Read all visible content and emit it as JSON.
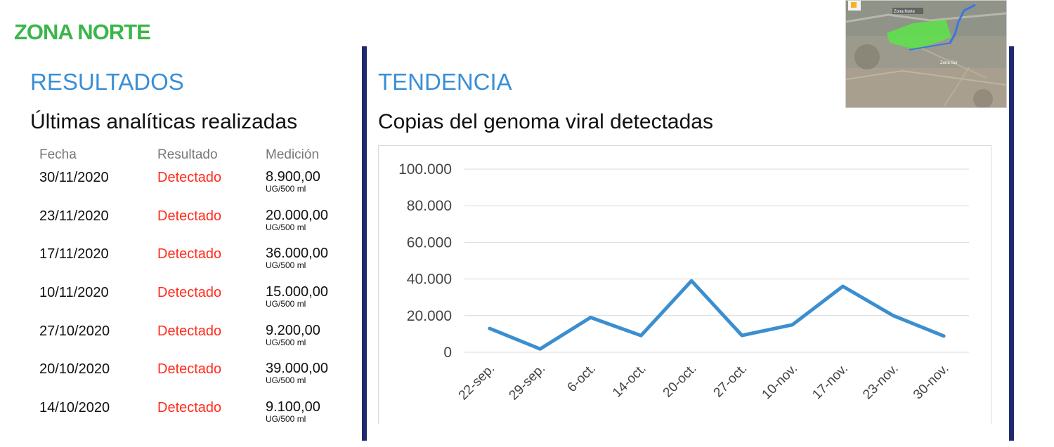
{
  "zone_title": "ZONA NORTE",
  "results": {
    "heading": "RESULTADOS",
    "subtitle": "Últimas analíticas realizadas",
    "columns": [
      "Fecha",
      "Resultado",
      "Medición"
    ],
    "rows": [
      {
        "date": "30/11/2020",
        "result": "Detectado",
        "value": "8.900,00",
        "unit": "UG/500 ml"
      },
      {
        "date": "23/11/2020",
        "result": "Detectado",
        "value": "20.000,00",
        "unit": "UG/500 ml"
      },
      {
        "date": "17/11/2020",
        "result": "Detectado",
        "value": "36.000,00",
        "unit": "UG/500 ml"
      },
      {
        "date": "10/11/2020",
        "result": "Detectado",
        "value": "15.000,00",
        "unit": "UG/500 ml"
      },
      {
        "date": "27/10/2020",
        "result": "Detectado",
        "value": "9.200,00",
        "unit": "UG/500 ml"
      },
      {
        "date": "20/10/2020",
        "result": "Detectado",
        "value": "39.000,00",
        "unit": "UG/500 ml"
      },
      {
        "date": "14/10/2020",
        "result": "Detectado",
        "value": "9.100,00",
        "unit": "UG/500 ml"
      }
    ]
  },
  "trend": {
    "heading": "TENDENCIA",
    "subtitle": "Copias del genoma viral detectadas"
  },
  "map_labels": [
    "Zona Norte",
    "Zona Sur"
  ],
  "colors": {
    "zone_green": "#3cb54a",
    "heading_blue": "#3a8fd6",
    "detected_red": "#ff2d1f",
    "rule_navy": "#1f2a6e",
    "line_blue": "#3b8fd0",
    "grid": "#d9d9d9"
  },
  "chart_data": {
    "type": "line",
    "categories": [
      "22-sep.",
      "29-sep.",
      "6-oct.",
      "14-oct.",
      "20-oct.",
      "27-oct.",
      "10-nov.",
      "17-nov.",
      "23-nov.",
      "30-nov."
    ],
    "series": [
      {
        "values": [
          13000,
          1800,
          19000,
          9100,
          39000,
          9200,
          15000,
          36000,
          20000,
          8900
        ]
      }
    ],
    "ylim": [
      0,
      100000
    ],
    "yticks": [
      0,
      20000,
      40000,
      60000,
      80000,
      100000
    ],
    "ytick_labels": [
      "0",
      "20.000",
      "40.000",
      "60.000",
      "80.000",
      "100.000"
    ],
    "grid": true,
    "legend": "none",
    "xlabel": "",
    "ylabel": ""
  }
}
